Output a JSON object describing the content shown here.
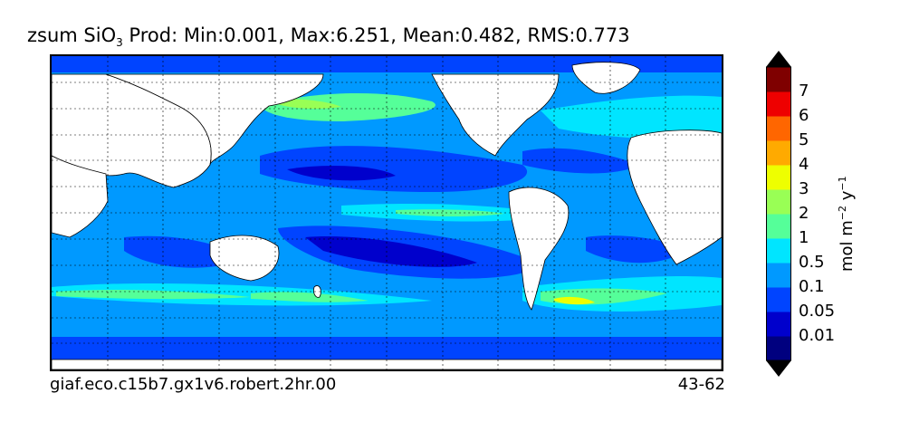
{
  "title": {
    "variable": "zsum SiO",
    "subscript": "3",
    "stats": " Prod: Min:0.001, Max:6.251, Mean:0.482, RMS:0.773"
  },
  "footer": {
    "run_id": "giaf.eco.c15b7.gx1v6.robert.2hr.00",
    "years": "43-62"
  },
  "colorbar": {
    "levels": [
      "0.01",
      "0.05",
      "0.1",
      "0.5",
      "1",
      "2",
      "3",
      "4",
      "5",
      "6",
      "7"
    ],
    "colors": [
      "#00007f",
      "#0000cc",
      "#0044ff",
      "#0099ff",
      "#00e5ff",
      "#55ff99",
      "#99ff55",
      "#eeff00",
      "#ffaa00",
      "#ff6600",
      "#ee0000",
      "#7f0000"
    ],
    "units_main": "mol m",
    "units_exp1": "−2",
    "units_mid": " y",
    "units_exp2": "−1"
  },
  "map": {
    "grid": true,
    "land_color": "#ffffff",
    "ocean_background": "#0099ff"
  }
}
